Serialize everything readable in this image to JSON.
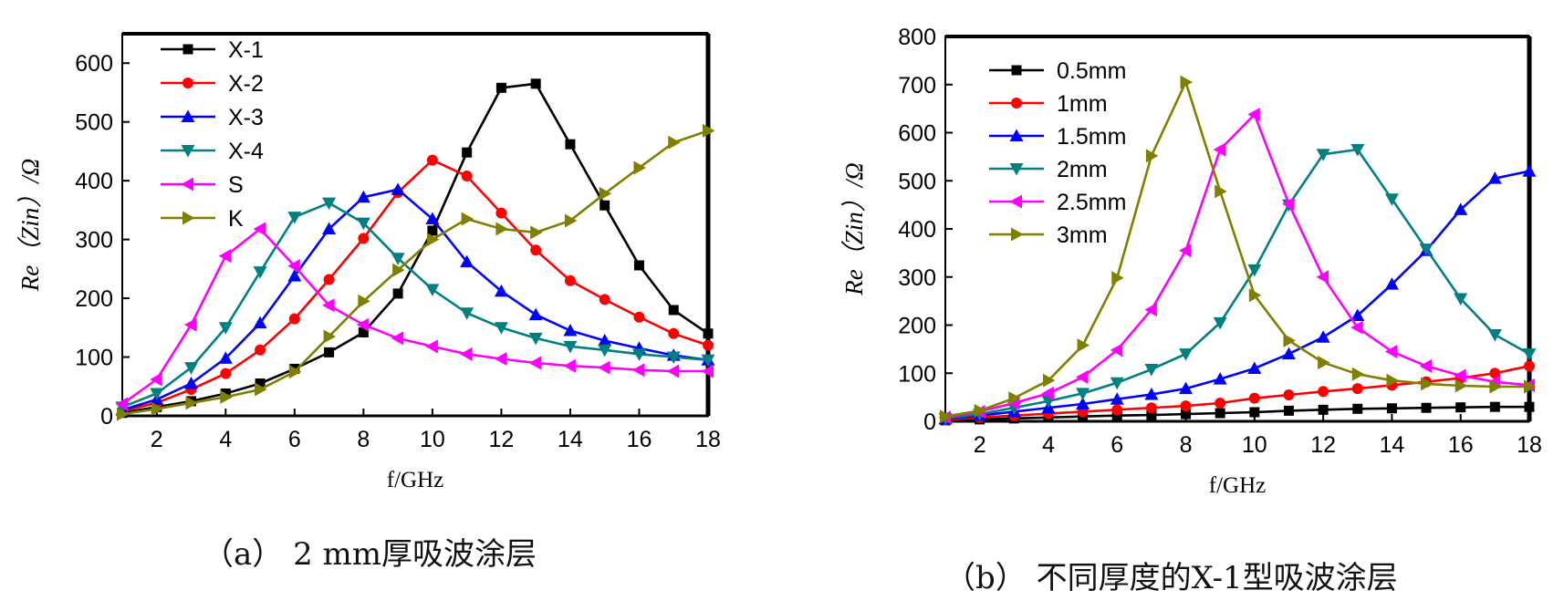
{
  "captions": {
    "a": "（a）  2 mm厚吸波涂层",
    "b": "（b）  不同厚度的X-1型吸波涂层"
  },
  "chart_data": [
    {
      "type": "line",
      "xlabel": "f/GHz",
      "ylabel": "Re（Zin）/Ω",
      "xlim": [
        1,
        18
      ],
      "ylim": [
        0,
        650
      ],
      "xticks": [
        2,
        4,
        6,
        8,
        10,
        12,
        14,
        16,
        18
      ],
      "yticks": [
        0,
        100,
        200,
        300,
        400,
        500,
        600
      ],
      "legend_position": "top-left",
      "grid": false,
      "x": [
        1,
        2,
        3,
        4,
        5,
        6,
        7,
        8,
        9,
        10,
        11,
        12,
        13,
        14,
        15,
        16,
        17,
        18
      ],
      "series": [
        {
          "name": "X-1",
          "color": "#000000",
          "marker": "square",
          "values": [
            5,
            15,
            25,
            38,
            55,
            80,
            108,
            142,
            208,
            315,
            448,
            558,
            565,
            462,
            358,
            256,
            180,
            140
          ]
        },
        {
          "name": "X-2",
          "color": "#ff0000",
          "marker": "circle",
          "values": [
            8,
            22,
            45,
            72,
            112,
            165,
            232,
            302,
            380,
            435,
            408,
            345,
            282,
            230,
            198,
            168,
            140,
            120
          ]
        },
        {
          "name": "X-3",
          "color": "#0000ff",
          "marker": "triangle-up",
          "values": [
            10,
            28,
            55,
            98,
            158,
            238,
            318,
            372,
            385,
            335,
            262,
            212,
            172,
            145,
            128,
            115,
            103,
            95
          ]
        },
        {
          "name": "X-4",
          "color": "#008080",
          "marker": "triangle-down",
          "values": [
            15,
            38,
            82,
            150,
            245,
            338,
            362,
            328,
            268,
            215,
            175,
            150,
            132,
            118,
            112,
            105,
            100,
            95
          ]
        },
        {
          "name": "S",
          "color": "#ff00ff",
          "marker": "triangle-left",
          "values": [
            20,
            62,
            155,
            272,
            318,
            255,
            188,
            155,
            132,
            118,
            105,
            97,
            90,
            85,
            82,
            78,
            76,
            76
          ]
        },
        {
          "name": "K",
          "color": "#808000",
          "marker": "triangle-right",
          "values": [
            3,
            12,
            22,
            32,
            45,
            75,
            135,
            195,
            248,
            300,
            335,
            318,
            312,
            332,
            378,
            422,
            465,
            485
          ]
        }
      ]
    },
    {
      "type": "line",
      "xlabel": "f/GHz",
      "ylabel": "Re（Zin）/Ω",
      "xlim": [
        1,
        18
      ],
      "ylim": [
        0,
        800
      ],
      "xticks": [
        2,
        4,
        6,
        8,
        10,
        12,
        14,
        16,
        18
      ],
      "yticks": [
        0,
        100,
        200,
        300,
        400,
        500,
        600,
        700,
        800
      ],
      "legend_position": "top-left",
      "grid": false,
      "x": [
        1,
        2,
        3,
        4,
        5,
        6,
        7,
        8,
        9,
        10,
        11,
        12,
        13,
        14,
        15,
        16,
        17,
        18
      ],
      "series": [
        {
          "name": "0.5mm",
          "color": "#000000",
          "marker": "square",
          "values": [
            2,
            4,
            6,
            8,
            10,
            12,
            13,
            15,
            17,
            19,
            22,
            24,
            26,
            27,
            28,
            29,
            30,
            30
          ]
        },
        {
          "name": "1mm",
          "color": "#ff0000",
          "marker": "circle",
          "values": [
            3,
            8,
            12,
            16,
            20,
            24,
            28,
            32,
            38,
            48,
            55,
            62,
            68,
            75,
            82,
            90,
            100,
            115
          ]
        },
        {
          "name": "1.5mm",
          "color": "#0000ff",
          "marker": "triangle-up",
          "values": [
            5,
            12,
            20,
            28,
            36,
            46,
            56,
            68,
            88,
            110,
            140,
            175,
            220,
            285,
            355,
            440,
            505,
            520
          ]
        },
        {
          "name": "2mm",
          "color": "#008080",
          "marker": "triangle-down",
          "values": [
            6,
            15,
            28,
            42,
            58,
            80,
            108,
            140,
            205,
            315,
            450,
            555,
            565,
            462,
            358,
            255,
            180,
            140
          ]
        },
        {
          "name": "2.5mm",
          "color": "#ff00ff",
          "marker": "triangle-left",
          "values": [
            8,
            20,
            38,
            58,
            92,
            148,
            232,
            355,
            565,
            638,
            452,
            300,
            195,
            145,
            115,
            95,
            82,
            75
          ]
        },
        {
          "name": "3mm",
          "color": "#808000",
          "marker": "triangle-right",
          "values": [
            10,
            22,
            48,
            85,
            158,
            298,
            552,
            705,
            478,
            262,
            168,
            122,
            98,
            85,
            78,
            74,
            72,
            72
          ]
        }
      ]
    }
  ]
}
